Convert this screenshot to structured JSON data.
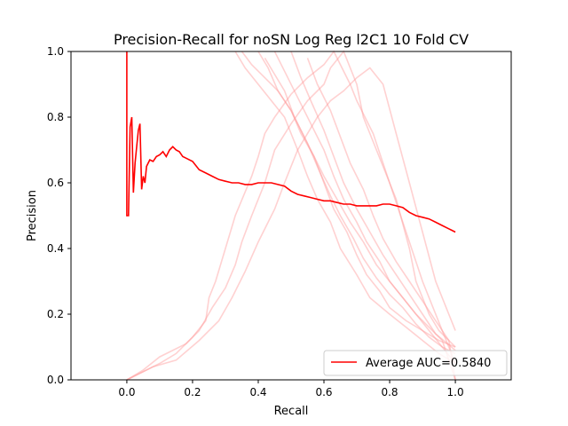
{
  "chart_data": {
    "type": "line",
    "title": "Precision-Recall for noSN Log Reg l2C1 10 Fold CV",
    "xlabel": "Recall",
    "ylabel": "Precision",
    "xlim": [
      -0.17,
      1.17
    ],
    "ylim": [
      0.0,
      1.0
    ],
    "x_ticks": [
      "0.0",
      "0.2",
      "0.4",
      "0.6",
      "0.8",
      "1.0"
    ],
    "y_ticks": [
      "0.0",
      "0.2",
      "0.4",
      "0.6",
      "0.8",
      "1.0"
    ],
    "grid": false,
    "legend_position": "lower-right",
    "colors": {
      "average": "#ff0000",
      "fold": "#ff9999",
      "axes": "#000000",
      "background": "#ffffff"
    },
    "series": [
      {
        "name": "Average AUC=0.5840",
        "style": "solid",
        "x": [
          0.0,
          0.0,
          0.005,
          0.01,
          0.015,
          0.02,
          0.025,
          0.03,
          0.035,
          0.04,
          0.045,
          0.05,
          0.055,
          0.06,
          0.07,
          0.08,
          0.09,
          0.1,
          0.11,
          0.12,
          0.13,
          0.14,
          0.15,
          0.16,
          0.17,
          0.18,
          0.2,
          0.22,
          0.24,
          0.26,
          0.28,
          0.3,
          0.32,
          0.34,
          0.36,
          0.38,
          0.4,
          0.42,
          0.44,
          0.46,
          0.48,
          0.5,
          0.52,
          0.54,
          0.56,
          0.58,
          0.6,
          0.62,
          0.64,
          0.66,
          0.68,
          0.7,
          0.72,
          0.74,
          0.76,
          0.78,
          0.8,
          0.82,
          0.84,
          0.86,
          0.88,
          0.9,
          0.92,
          0.94,
          0.96,
          0.98,
          1.0
        ],
        "y": [
          1.0,
          0.5,
          0.5,
          0.77,
          0.8,
          0.57,
          0.66,
          0.71,
          0.76,
          0.78,
          0.58,
          0.62,
          0.6,
          0.65,
          0.67,
          0.665,
          0.68,
          0.685,
          0.695,
          0.68,
          0.7,
          0.71,
          0.7,
          0.695,
          0.68,
          0.675,
          0.665,
          0.64,
          0.63,
          0.62,
          0.61,
          0.605,
          0.6,
          0.6,
          0.595,
          0.595,
          0.6,
          0.6,
          0.6,
          0.595,
          0.59,
          0.575,
          0.565,
          0.56,
          0.555,
          0.55,
          0.545,
          0.545,
          0.54,
          0.535,
          0.535,
          0.53,
          0.53,
          0.53,
          0.53,
          0.535,
          0.535,
          0.53,
          0.525,
          0.51,
          0.5,
          0.495,
          0.49,
          0.48,
          0.47,
          0.46,
          0.45
        ]
      }
    ],
    "fold_curves": [
      {
        "x": [
          0.0,
          0.1,
          0.15,
          0.2,
          0.24,
          0.25,
          0.27,
          0.3,
          0.33,
          0.38,
          0.4,
          0.42,
          0.45,
          0.5,
          0.55,
          0.6,
          0.63,
          0.68,
          0.7,
          0.75,
          0.8,
          0.82,
          0.86,
          0.88,
          0.92,
          0.95,
          1.0
        ],
        "y": [
          0.0,
          0.05,
          0.08,
          0.13,
          0.18,
          0.25,
          0.3,
          0.4,
          0.5,
          0.62,
          0.68,
          0.75,
          0.8,
          0.87,
          0.92,
          0.96,
          1.0,
          0.9,
          0.85,
          0.75,
          0.6,
          0.55,
          0.4,
          0.3,
          0.2,
          0.15,
          0.1
        ]
      },
      {
        "x": [
          0.0,
          0.05,
          0.1,
          0.18,
          0.22,
          0.26,
          0.3,
          0.33,
          0.35,
          0.38,
          0.42,
          0.45,
          0.5,
          0.55,
          0.6,
          0.62,
          0.66,
          0.7,
          0.72,
          0.76,
          0.8,
          0.85,
          0.9,
          1.0
        ],
        "y": [
          0.0,
          0.03,
          0.07,
          0.11,
          0.15,
          0.22,
          0.28,
          0.35,
          0.42,
          0.5,
          0.6,
          0.7,
          0.78,
          0.85,
          0.9,
          0.95,
          1.0,
          0.9,
          0.8,
          0.7,
          0.6,
          0.45,
          0.3,
          0.05
        ]
      },
      {
        "x": [
          0.0,
          0.08,
          0.15,
          0.22,
          0.28,
          0.32,
          0.36,
          0.4,
          0.45,
          0.48,
          0.52,
          0.58,
          0.62,
          0.66,
          0.7,
          0.74,
          0.78,
          0.82,
          0.86,
          0.9,
          0.94,
          1.0
        ],
        "y": [
          0.0,
          0.04,
          0.06,
          0.12,
          0.18,
          0.25,
          0.33,
          0.42,
          0.52,
          0.6,
          0.7,
          0.8,
          0.85,
          0.88,
          0.92,
          0.95,
          0.9,
          0.75,
          0.6,
          0.45,
          0.3,
          0.15
        ]
      },
      {
        "x": [
          0.33,
          0.36,
          0.4,
          0.44,
          0.48,
          0.5,
          0.52,
          0.55,
          0.58,
          0.62,
          0.65,
          0.7,
          0.74,
          0.8,
          0.85,
          0.9,
          0.95,
          1.0
        ],
        "y": [
          1.0,
          0.95,
          0.9,
          0.85,
          0.8,
          0.75,
          0.7,
          0.62,
          0.55,
          0.48,
          0.4,
          0.32,
          0.25,
          0.2,
          0.16,
          0.12,
          0.08,
          0.05
        ]
      },
      {
        "x": [
          0.35,
          0.38,
          0.42,
          0.46,
          0.5,
          0.53,
          0.56,
          0.6,
          0.64,
          0.68,
          0.72,
          0.76,
          0.8,
          0.84,
          0.88,
          0.92,
          0.96,
          1.0
        ],
        "y": [
          1.0,
          0.96,
          0.92,
          0.88,
          0.82,
          0.76,
          0.7,
          0.62,
          0.55,
          0.48,
          0.42,
          0.35,
          0.3,
          0.25,
          0.2,
          0.16,
          0.12,
          0.0
        ]
      },
      {
        "x": [
          0.4,
          0.43,
          0.46,
          0.5,
          0.53,
          0.57,
          0.6,
          0.63,
          0.67,
          0.7,
          0.73,
          0.77,
          0.8,
          0.85,
          0.9,
          0.95,
          1.0
        ],
        "y": [
          1.0,
          0.95,
          0.88,
          0.82,
          0.75,
          0.68,
          0.6,
          0.52,
          0.45,
          0.38,
          0.32,
          0.27,
          0.22,
          0.18,
          0.15,
          0.12,
          0.1
        ]
      },
      {
        "x": [
          0.42,
          0.45,
          0.48,
          0.51,
          0.55,
          0.58,
          0.62,
          0.65,
          0.69,
          0.72,
          0.76,
          0.8,
          0.84,
          0.88,
          0.92,
          0.96,
          1.0
        ],
        "y": [
          0.98,
          0.93,
          0.88,
          0.8,
          0.72,
          0.65,
          0.56,
          0.5,
          0.43,
          0.37,
          0.31,
          0.26,
          0.22,
          0.17,
          0.13,
          0.1,
          0.08
        ]
      },
      {
        "x": [
          0.45,
          0.48,
          0.52,
          0.56,
          0.6,
          0.63,
          0.66,
          0.7,
          0.73,
          0.77,
          0.8,
          0.84,
          0.88,
          0.92,
          0.96,
          1.0
        ],
        "y": [
          1.0,
          0.94,
          0.86,
          0.78,
          0.7,
          0.62,
          0.55,
          0.48,
          0.42,
          0.36,
          0.3,
          0.25,
          0.2,
          0.15,
          0.1,
          0.05
        ]
      },
      {
        "x": [
          0.5,
          0.53,
          0.56,
          0.6,
          0.63,
          0.66,
          0.7,
          0.74,
          0.78,
          0.82,
          0.86,
          0.9,
          0.94,
          1.0
        ],
        "y": [
          1.0,
          0.92,
          0.85,
          0.76,
          0.68,
          0.6,
          0.52,
          0.45,
          0.38,
          0.32,
          0.26,
          0.2,
          0.14,
          0.09
        ]
      },
      {
        "x": [
          0.55,
          0.58,
          0.62,
          0.65,
          0.68,
          0.72,
          0.75,
          0.78,
          0.82,
          0.86,
          0.9,
          0.94,
          0.98,
          1.0
        ],
        "y": [
          0.98,
          0.9,
          0.82,
          0.74,
          0.66,
          0.58,
          0.5,
          0.43,
          0.36,
          0.3,
          0.24,
          0.18,
          0.12,
          0.0
        ]
      }
    ]
  }
}
